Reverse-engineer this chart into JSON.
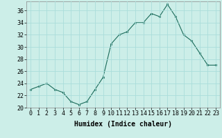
{
  "x": [
    0,
    1,
    2,
    3,
    4,
    5,
    6,
    7,
    8,
    9,
    10,
    11,
    12,
    13,
    14,
    15,
    16,
    17,
    18,
    19,
    20,
    21,
    22,
    23
  ],
  "y": [
    23,
    23.5,
    24,
    23,
    22.5,
    21,
    20.5,
    21,
    23,
    25,
    30.5,
    32,
    32.5,
    34,
    34,
    35.5,
    35,
    37,
    35,
    32,
    31,
    29,
    27,
    27
  ],
  "line_color": "#1a6b5a",
  "marker_color": "#1a6b5a",
  "bg_color": "#cceee8",
  "grid_color": "#aaddda",
  "xlabel": "Humidex (Indice chaleur)",
  "ylim": [
    20,
    37.5
  ],
  "yticks": [
    20,
    22,
    24,
    26,
    28,
    30,
    32,
    34,
    36
  ],
  "xtick_labels": [
    "0",
    "1",
    "2",
    "3",
    "4",
    "5",
    "6",
    "7",
    "8",
    "9",
    "10",
    "11",
    "12",
    "13",
    "14",
    "15",
    "16",
    "17",
    "18",
    "19",
    "20",
    "21",
    "22",
    "23"
  ],
  "label_fontsize": 7,
  "tick_fontsize": 6
}
